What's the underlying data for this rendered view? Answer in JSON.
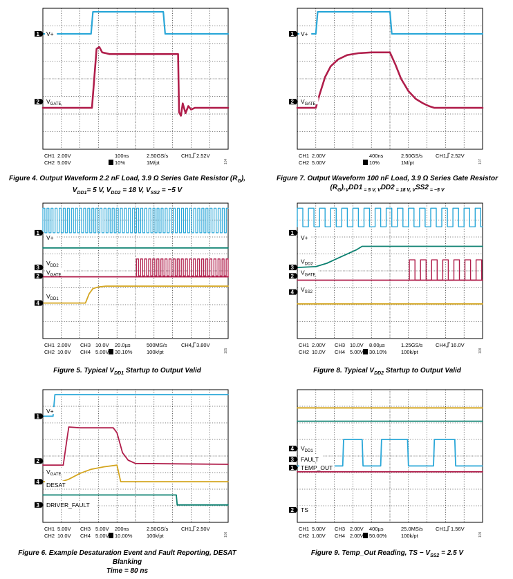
{
  "colors": {
    "cyan": "#2aa7d8",
    "magenta": "#b01e4b",
    "teal": "#0b8070",
    "gold": "#d4a51f"
  },
  "chart_data": [
    {
      "type": "line",
      "id": "fig4",
      "caption": "Figure 4. Output Waveform 2.2 nF Load, 3.9 Ω Series Gate Resistor (RG), VDD1 = 5 V, VDD2 = 18 V, VSS2 = −5 V",
      "caption_lines": [
        "Figure 4. Output Waveform 2.2 nF Load, 3.9 Ω Series Gate Resistor (R",
        "G",
        "), V",
        "DD1",
        "= 5 V, V",
        "DD2",
        " = 18 V, V",
        "SS2",
        " = −5 V"
      ],
      "time_per_div": "100ns",
      "markers": [
        {
          "num": "1",
          "level": 1.45
        },
        {
          "num": "2",
          "level": 5.3
        }
      ],
      "channel_labels": [
        {
          "main": "V+",
          "sub": "",
          "level": 1.45
        },
        {
          "main": "V",
          "sub": "GATE",
          "level": 5.3
        }
      ],
      "series": [
        {
          "color": "cyan",
          "width": 2.2,
          "x": [
            0,
            2.6,
            2.7,
            6.5,
            6.6,
            10
          ],
          "y": [
            1.45,
            1.45,
            0.2,
            0.2,
            1.45,
            1.45
          ]
        },
        {
          "color": "magenta",
          "width": 2.6,
          "x": [
            0,
            2.65,
            2.9,
            3.05,
            3.2,
            3.4,
            3.6,
            7.3,
            7.35,
            7.45,
            7.55,
            7.7,
            7.85,
            8.0,
            8.2,
            10
          ],
          "y": [
            5.65,
            5.65,
            2.3,
            2.2,
            2.5,
            2.55,
            2.6,
            2.6,
            5.9,
            6.1,
            5.4,
            5.95,
            5.55,
            5.75,
            5.65,
            5.65
          ]
        }
      ],
      "status_lines": [
        [
          "CH1",
          "2.00V",
          "",
          "",
          "100ns",
          "2.50GS/s",
          "CH1",
          "2.52V"
        ],
        [
          "CH2",
          "5.00V",
          "",
          "",
          "10%",
          "1M/pt",
          "",
          ""
        ]
      ],
      "fig_number": "104"
    },
    {
      "type": "line",
      "id": "fig7",
      "caption_lines": [
        "Figure 7. Output Waveform 100 nF Load, 3.9 Ω Series Gate Resistor (R",
        "G",
        "),",
        "V",
        "DD1",
        " = 5 V, V",
        "DD2",
        " = 18 V, V",
        "SS2",
        " = −5 V"
      ],
      "time_per_div": "400ns",
      "markers": [
        {
          "num": "1",
          "level": 1.45
        },
        {
          "num": "2",
          "level": 5.3
        }
      ],
      "channel_labels": [
        {
          "main": "V+",
          "sub": "",
          "level": 1.45
        },
        {
          "main": "V",
          "sub": "GATE",
          "level": 5.3
        }
      ],
      "series": [
        {
          "color": "cyan",
          "width": 2.2,
          "x": [
            0,
            1.0,
            1.1,
            5.0,
            5.1,
            10
          ],
          "y": [
            1.45,
            1.45,
            0.2,
            0.2,
            1.45,
            1.45
          ]
        },
        {
          "color": "magenta",
          "width": 2.6,
          "x": [
            0,
            1.0,
            1.2,
            1.5,
            1.8,
            2.2,
            2.7,
            3.3,
            4.0,
            5.0,
            5.3,
            5.6,
            6.0,
            6.4,
            6.8,
            7.1,
            7.4,
            10
          ],
          "y": [
            5.65,
            5.65,
            4.9,
            3.9,
            3.3,
            2.9,
            2.65,
            2.55,
            2.5,
            2.5,
            3.2,
            4.0,
            4.7,
            5.15,
            5.4,
            5.55,
            5.65,
            5.65
          ]
        }
      ],
      "status_lines": [
        [
          "CH1",
          "2.00V",
          "",
          "",
          "400ns",
          "2.50GS/s",
          "CH1",
          "2.52V"
        ],
        [
          "CH2",
          "5.00V",
          "",
          "",
          "10%",
          "1M/pt",
          "",
          ""
        ]
      ],
      "fig_number": "107"
    },
    {
      "type": "line",
      "id": "fig5",
      "caption_lines": [
        "Figure 5. Typical V",
        "DD1",
        " Startup to Output Valid"
      ],
      "time_per_div": "20.0µs",
      "markers": [
        {
          "num": "1",
          "level": 1.75
        },
        {
          "num": "3",
          "level": 3.8
        },
        {
          "num": "2",
          "level": 4.3
        },
        {
          "num": "4",
          "level": 5.9
        }
      ],
      "channel_labels": [
        {
          "main": "V+",
          "sub": "",
          "level": 2.05
        },
        {
          "main": "V",
          "sub": "DD2",
          "level": 3.55
        },
        {
          "main": "V",
          "sub": "GATE",
          "level": 4.1
        },
        {
          "main": "V",
          "sub": "DD1",
          "level": 5.5
        }
      ],
      "series": [
        {
          "color": "cyan",
          "width": 1.2,
          "pwm": true,
          "x": [
            0,
            10
          ],
          "y": [
            0.3,
            1.75
          ],
          "period": 0.22
        },
        {
          "color": "teal",
          "width": 1.8,
          "x": [
            0,
            10
          ],
          "y": [
            2.65,
            2.65
          ]
        },
        {
          "color": "magenta",
          "width": 1.8,
          "x": [
            0,
            5.0,
            5.05,
            10
          ],
          "y": [
            4.35,
            4.35,
            4.35,
            4.35
          ]
        },
        {
          "color": "magenta",
          "width": 1.3,
          "pwm": true,
          "x": [
            5.05,
            10
          ],
          "y": [
            3.3,
            4.3
          ],
          "period": 0.22
        },
        {
          "color": "gold",
          "width": 1.8,
          "x": [
            0,
            2.3,
            2.5,
            2.7,
            3.0,
            3.4,
            10
          ],
          "y": [
            5.9,
            5.9,
            5.35,
            5.05,
            4.95,
            4.9,
            4.9
          ]
        }
      ],
      "status_lines": [
        [
          "CH1",
          "2.00V",
          "CH3",
          "10.0V",
          "20.0µs",
          "500MS/s",
          "CH4",
          "3.80V"
        ],
        [
          "CH2",
          "10.0V",
          "CH4",
          "5.00V",
          "30.10%",
          "100k/pt",
          "",
          ""
        ]
      ],
      "fig_number": "105"
    },
    {
      "type": "line",
      "id": "fig8",
      "caption_lines": [
        "Figure 8. Typical V",
        "DD2",
        " Startup to Output Valid"
      ],
      "time_per_div": "8.00µs",
      "markers": [
        {
          "num": "1",
          "level": 1.75
        },
        {
          "num": "3",
          "level": 3.8
        },
        {
          "num": "2",
          "level": 4.3
        },
        {
          "num": "4",
          "level": 5.25
        }
      ],
      "channel_labels": [
        {
          "main": "V+",
          "sub": "",
          "level": 2.05
        },
        {
          "main": "V",
          "sub": "DD2",
          "level": 3.45
        },
        {
          "main": "V",
          "sub": "GATE",
          "level": 4.1
        },
        {
          "main": "V",
          "sub": "SS2",
          "level": 5.1
        }
      ],
      "series": [
        {
          "color": "cyan",
          "width": 1.4,
          "pwm": true,
          "x": [
            0,
            10
          ],
          "y": [
            0.3,
            1.4
          ],
          "period": 0.6
        },
        {
          "color": "teal",
          "width": 1.8,
          "x": [
            0,
            1.0,
            1.6,
            2.2,
            2.8,
            3.2,
            3.5,
            10
          ],
          "y": [
            3.8,
            3.75,
            3.55,
            3.25,
            2.95,
            2.75,
            2.55,
            2.55
          ]
        },
        {
          "color": "magenta",
          "width": 1.8,
          "x": [
            0,
            10
          ],
          "y": [
            4.55,
            4.55
          ]
        },
        {
          "color": "magenta",
          "width": 1.4,
          "pwm": true,
          "x": [
            6.05,
            10
          ],
          "y": [
            3.35,
            4.55
          ],
          "period": 0.6
        },
        {
          "color": "gold",
          "width": 1.8,
          "x": [
            0,
            10
          ],
          "y": [
            5.95,
            5.95
          ]
        }
      ],
      "status_lines": [
        [
          "CH1",
          "2.00V",
          "CH3",
          "10.0V",
          "8.00µs",
          "1.25GS/s",
          "CH4",
          "16.0V"
        ],
        [
          "CH2",
          "10.0V",
          "CH4",
          "5.00V",
          "30.10%",
          "100k/pt",
          "",
          ""
        ]
      ],
      "fig_number": "108"
    },
    {
      "type": "line",
      "id": "fig6",
      "caption_lines": [
        "Figure 6. Example Desaturation Event and Fault Reporting, DESAT Blanking",
        "",
        "Time = 80 ns"
      ],
      "time_per_div": "200ns",
      "markers": [
        {
          "num": "1",
          "level": 1.6
        },
        {
          "num": "2",
          "level": 4.3
        },
        {
          "num": "4",
          "level": 5.55
        },
        {
          "num": "3",
          "level": 6.95
        }
      ],
      "channel_labels": [
        {
          "main": "V+",
          "sub": "",
          "level": 1.3
        },
        {
          "main": "V",
          "sub": "GATE",
          "level": 4.95
        },
        {
          "main": "DESAT",
          "sub": "",
          "level": 5.75
        },
        {
          "main": "DRIVER_FAULT",
          "sub": "",
          "level": 6.95
        }
      ],
      "series": [
        {
          "color": "cyan",
          "width": 1.8,
          "x": [
            0,
            0.55,
            0.65,
            10
          ],
          "y": [
            1.6,
            1.6,
            0.3,
            0.3
          ]
        },
        {
          "color": "magenta",
          "width": 1.8,
          "x": [
            0,
            1.1,
            1.3,
            1.4,
            2.0,
            3.8,
            4.0,
            4.3,
            4.6,
            5.0,
            10
          ],
          "y": [
            4.55,
            4.55,
            3.0,
            2.25,
            2.3,
            2.3,
            2.6,
            3.8,
            4.25,
            4.45,
            4.5
          ]
        },
        {
          "color": "gold",
          "width": 1.8,
          "x": [
            0,
            1.0,
            1.4,
            2.0,
            2.6,
            3.3,
            4.0,
            4.2,
            10
          ],
          "y": [
            5.55,
            5.55,
            5.4,
            5.05,
            4.8,
            4.65,
            4.55,
            5.55,
            5.55
          ]
        },
        {
          "color": "teal",
          "width": 1.8,
          "x": [
            0,
            7.2,
            7.25,
            10
          ],
          "y": [
            6.35,
            6.35,
            6.95,
            6.95
          ]
        }
      ],
      "status_lines": [
        [
          "CH1",
          "5.00V",
          "CH3",
          "5.00V",
          "200ns",
          "2.50GS/s",
          "CH1",
          "2.50V"
        ],
        [
          "CH2",
          "10.0V",
          "CH4",
          "5.00V",
          "10.00%",
          "100k/pt",
          "",
          ""
        ]
      ],
      "fig_number": "106"
    },
    {
      "type": "line",
      "id": "fig9",
      "caption_lines": [
        "Figure 9. Temp_Out Reading, TS − V",
        "SS2",
        " = 2.5 V"
      ],
      "time_per_div": "400µs",
      "markers": [
        {
          "num": "4",
          "level": 3.55
        },
        {
          "num": "3",
          "level": 4.2
        },
        {
          "num": "1",
          "level": 4.7
        },
        {
          "num": "2",
          "level": 7.25
        }
      ],
      "channel_labels": [
        {
          "main": "V",
          "sub": "DD1",
          "level": 3.55
        },
        {
          "main": "FAULT",
          "sub": "",
          "level": 4.2
        },
        {
          "main": "TEMP_OUT",
          "sub": "",
          "level": 4.7
        },
        {
          "main": "TS",
          "sub": "",
          "level": 7.25
        }
      ],
      "series": [
        {
          "color": "gold",
          "width": 2.0,
          "x": [
            0,
            10
          ],
          "y": [
            1.1,
            1.1
          ]
        },
        {
          "color": "teal",
          "width": 1.8,
          "x": [
            0,
            10
          ],
          "y": [
            1.9,
            1.9
          ]
        },
        {
          "color": "cyan",
          "width": 1.8,
          "x": [
            0,
            2.45,
            2.5,
            3.5,
            3.55,
            4.5,
            4.55,
            5.95,
            6.0,
            7.35,
            7.4,
            8.5,
            8.55,
            10
          ],
          "y": [
            4.6,
            4.6,
            3.0,
            3.0,
            4.6,
            4.6,
            3.0,
            3.0,
            4.6,
            4.6,
            3.0,
            3.0,
            4.6,
            4.6
          ]
        },
        {
          "color": "magenta",
          "width": 1.8,
          "x": [
            0,
            10
          ],
          "y": [
            4.95,
            4.95
          ]
        }
      ],
      "status_lines": [
        [
          "CH1",
          "5.00V",
          "CH3",
          "2.00V",
          "400µs",
          "25.0MS/s",
          "CH1",
          "1.56V"
        ],
        [
          "CH2",
          "1.00V",
          "CH4",
          "2.00V",
          "50.00%",
          "100k/pt",
          "",
          ""
        ]
      ],
      "fig_number": "109"
    }
  ]
}
